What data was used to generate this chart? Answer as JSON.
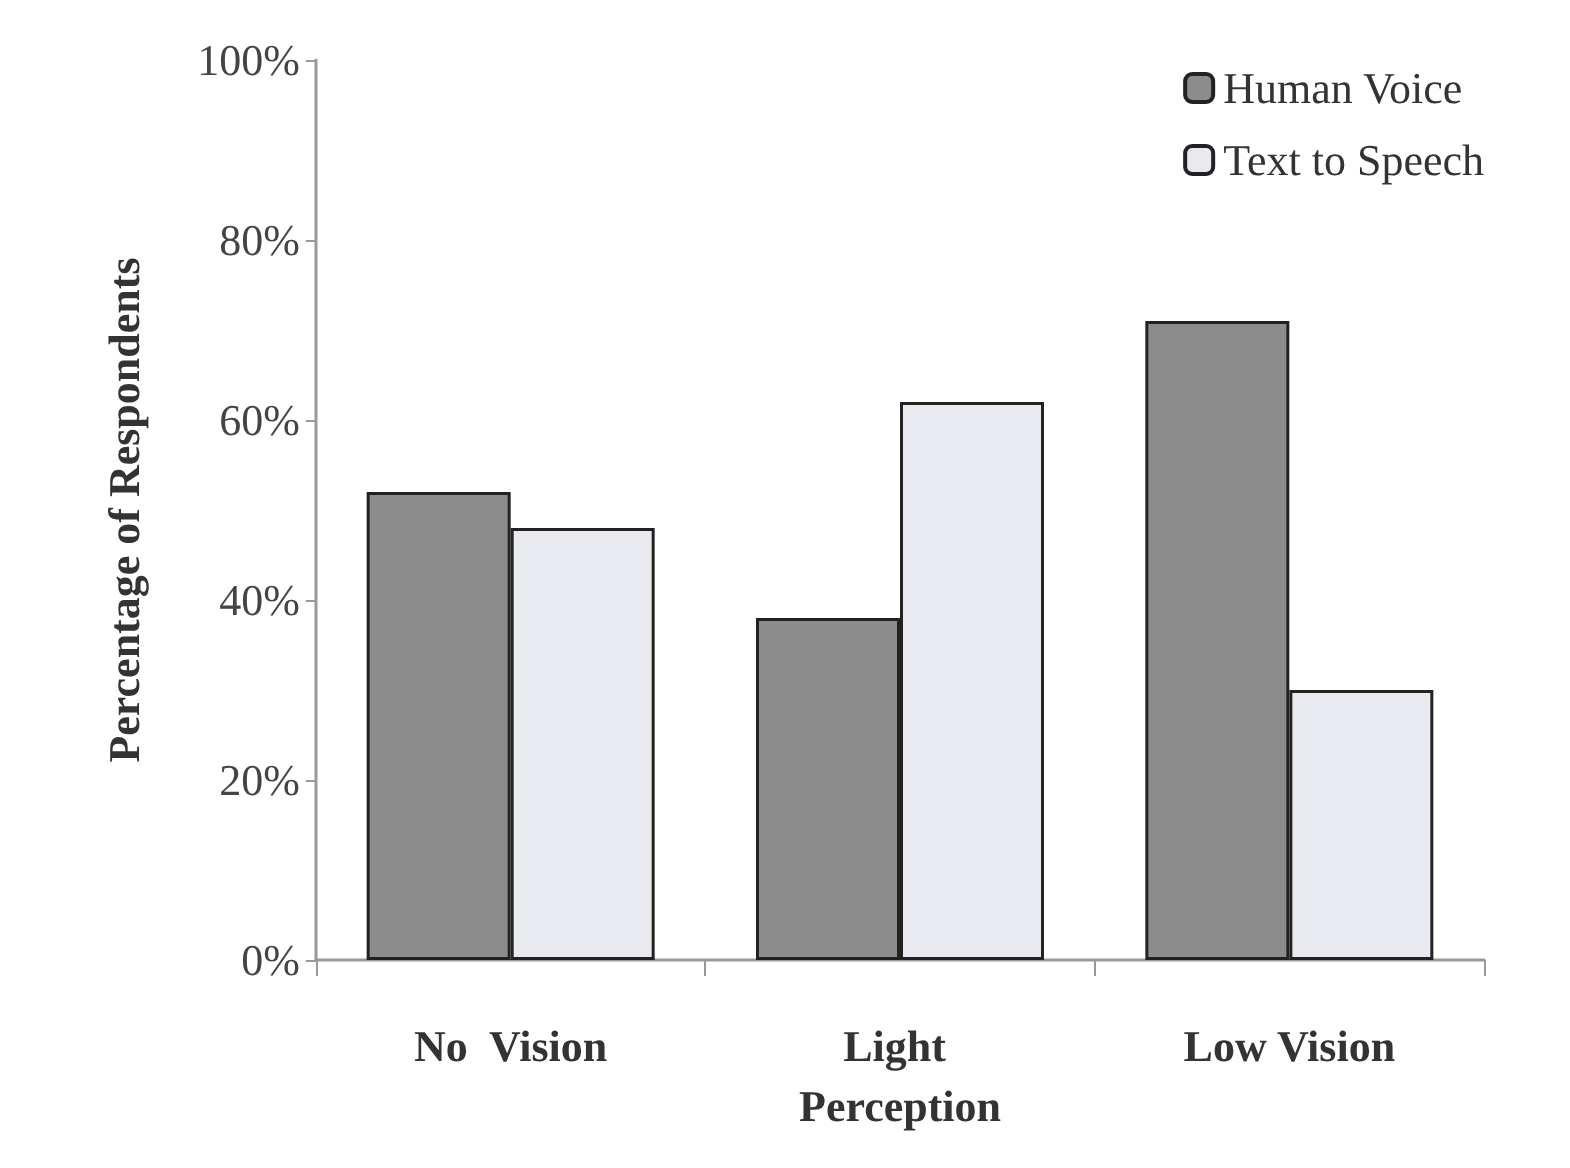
{
  "chart_data": {
    "type": "bar",
    "ylabel": "Percentage of Respondents",
    "categories": [
      "No  Vision",
      "Light Perception",
      "Low Vision"
    ],
    "series": [
      {
        "name": "Human Voice",
        "color": "#8c8c8c",
        "values": [
          52,
          38,
          71
        ]
      },
      {
        "name": "Text to Speech",
        "color": "#e8eaf0",
        "values": [
          48,
          62,
          30
        ]
      }
    ],
    "ylim": [
      0,
      100
    ],
    "yticks": [
      {
        "value": 0,
        "label": "0%"
      },
      {
        "value": 20,
        "label": "20%"
      },
      {
        "value": 40,
        "label": "40%"
      },
      {
        "value": 60,
        "label": "60%"
      },
      {
        "value": 80,
        "label": "80%"
      },
      {
        "value": 100,
        "label": "100%"
      }
    ],
    "grid": false,
    "legend": "top right"
  }
}
